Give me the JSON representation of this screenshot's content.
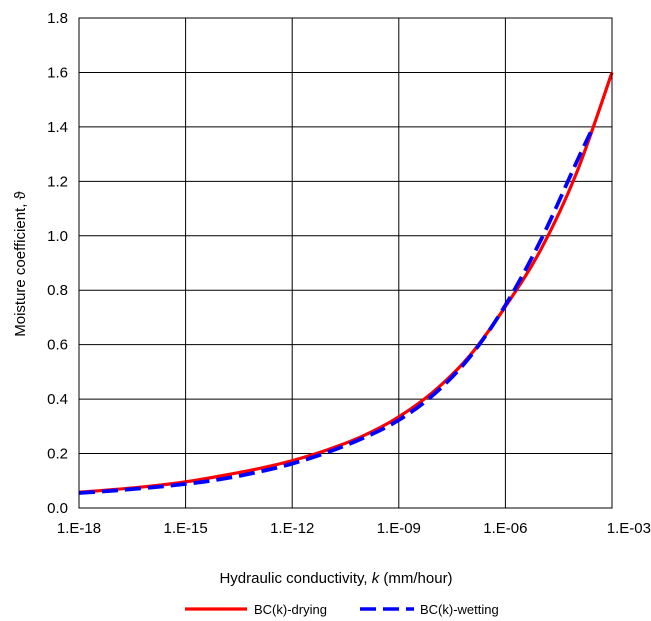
{
  "chart_data": {
    "type": "line",
    "xlabel": "Hydraulic conductivity, k (mm/hour)",
    "xlabel_parts": [
      "Hydraulic conductivity, ",
      "k",
      " (mm/hour)"
    ],
    "ylabel": "Moisture coefficient, ϑ",
    "x_scale": "log",
    "xlim": [
      1e-18,
      0.001
    ],
    "ylim": [
      0,
      1.8
    ],
    "grid": true,
    "legend_position": "bottom",
    "x_tick_values": [
      1e-18,
      1e-15,
      1e-12,
      1e-09,
      1e-06,
      0.001
    ],
    "x_tick_labels": [
      "1.E-18",
      "1.E-15",
      "1.E-12",
      "1.E-09",
      "1.E-06",
      "1.E-03"
    ],
    "y_tick_values": [
      0,
      0.2,
      0.4,
      0.6,
      0.8,
      1.0,
      1.2,
      1.4,
      1.6,
      1.8
    ],
    "y_tick_labels": [
      "0.0",
      "0.2",
      "0.4",
      "0.6",
      "0.8",
      "1.0",
      "1.2",
      "1.4",
      "1.6",
      "1.8"
    ],
    "series": [
      {
        "name": "BC(k)-drying",
        "color": "#ff0000",
        "style": "solid",
        "x": [
          1e-18,
          1e-17,
          1e-16,
          1e-15,
          1e-14,
          1e-13,
          1e-12,
          1e-11,
          1e-10,
          1e-09,
          1e-08,
          1e-07,
          1e-06,
          1e-05,
          0.0001,
          0.001
        ],
        "y": [
          0.058,
          0.068,
          0.08,
          0.096,
          0.118,
          0.143,
          0.174,
          0.214,
          0.265,
          0.335,
          0.43,
          0.56,
          0.74,
          0.95,
          1.23,
          1.6
        ]
      },
      {
        "name": "BC(k)-wetting",
        "color": "#0000ff",
        "style": "dashed",
        "x": [
          1e-18,
          1e-17,
          1e-16,
          1e-15,
          1e-14,
          1e-13,
          1e-12,
          1e-11,
          1e-10,
          1e-09,
          1e-08,
          1e-07,
          1e-06,
          1e-05,
          0.0001,
          0.00025
        ],
        "y": [
          0.055,
          0.064,
          0.075,
          0.088,
          0.106,
          0.131,
          0.163,
          0.205,
          0.257,
          0.323,
          0.419,
          0.555,
          0.745,
          0.985,
          1.27,
          1.38
        ]
      }
    ]
  }
}
